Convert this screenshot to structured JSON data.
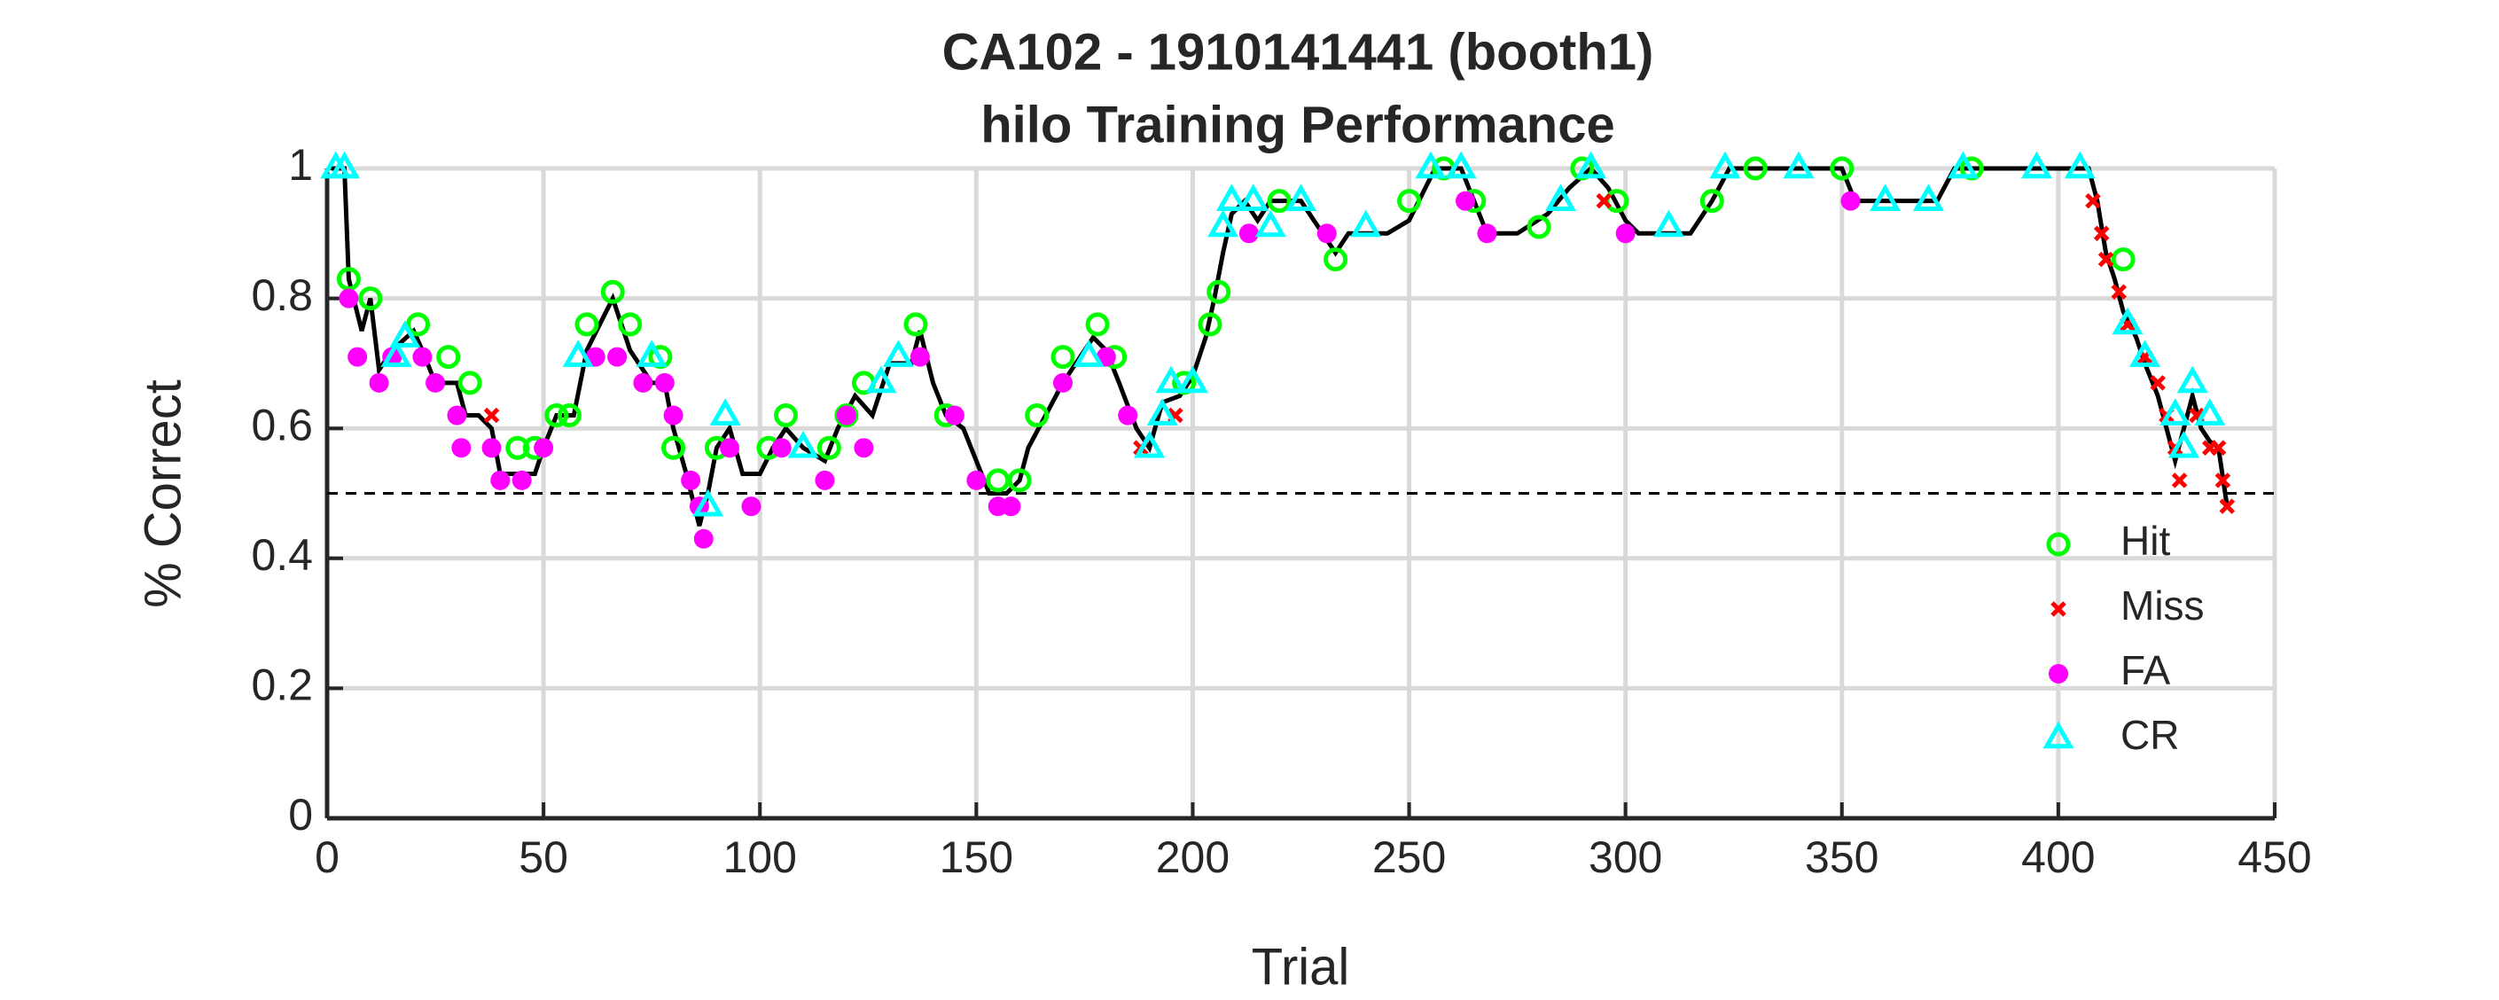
{
  "chart_data": {
    "type": "line",
    "title": "CA102 - 1910141441 (booth1)",
    "subtitle": "hilo Training Performance",
    "xlabel": "Trial",
    "ylabel": "% Correct",
    "xlim": [
      0,
      450
    ],
    "xticks": [
      0,
      50,
      100,
      150,
      200,
      250,
      300,
      350,
      400,
      450
    ],
    "ylim": [
      0,
      1
    ],
    "yticks": [
      0,
      0.2,
      0.4,
      0.6,
      0.8,
      1
    ],
    "grid": true,
    "legend": "lower right",
    "reference_line": 0.5,
    "line": {
      "color": "#000000",
      "x": [
        1,
        4,
        5,
        8,
        10,
        12,
        15,
        20,
        22,
        25,
        30,
        32,
        35,
        38,
        40,
        45,
        48,
        50,
        53,
        57,
        60,
        63,
        66,
        70,
        75,
        78,
        80,
        83,
        86,
        88,
        90,
        93,
        96,
        100,
        103,
        106,
        110,
        115,
        118,
        122,
        126,
        130,
        135,
        137,
        140,
        143,
        147,
        150,
        153,
        157,
        160,
        162,
        166,
        170,
        173,
        177,
        180,
        183,
        187,
        190,
        193,
        197,
        200,
        203,
        205,
        207,
        209,
        212,
        215,
        218,
        225,
        230,
        233,
        236,
        245,
        250,
        253,
        256,
        262,
        265,
        268,
        275,
        282,
        287,
        292,
        296,
        300,
        303,
        315,
        320,
        324,
        350,
        353,
        372,
        376,
        407,
        409,
        411,
        413,
        415,
        418,
        420,
        423,
        425,
        427,
        429,
        431,
        433,
        435,
        437,
        439
      ],
      "values": [
        1,
        1,
        0.83,
        0.75,
        0.8,
        0.69,
        0.72,
        0.75,
        0.72,
        0.67,
        0.67,
        0.62,
        0.62,
        0.6,
        0.53,
        0.53,
        0.53,
        0.57,
        0.62,
        0.62,
        0.72,
        0.76,
        0.8,
        0.72,
        0.67,
        0.67,
        0.6,
        0.53,
        0.45,
        0.5,
        0.57,
        0.6,
        0.53,
        0.53,
        0.57,
        0.6,
        0.57,
        0.55,
        0.6,
        0.65,
        0.62,
        0.7,
        0.7,
        0.75,
        0.67,
        0.62,
        0.6,
        0.55,
        0.5,
        0.5,
        0.52,
        0.57,
        0.62,
        0.67,
        0.7,
        0.74,
        0.72,
        0.67,
        0.6,
        0.57,
        0.64,
        0.65,
        0.68,
        0.74,
        0.8,
        0.87,
        0.93,
        0.95,
        0.92,
        0.95,
        0.95,
        0.9,
        0.87,
        0.9,
        0.9,
        0.92,
        0.96,
        1,
        1,
        0.95,
        0.9,
        0.9,
        0.93,
        0.97,
        1,
        0.97,
        0.92,
        0.9,
        0.9,
        0.95,
        1,
        1,
        0.95,
        0.95,
        1,
        1,
        0.95,
        0.87,
        0.83,
        0.78,
        0.74,
        0.7,
        0.65,
        0.6,
        0.55,
        0.6,
        0.65,
        0.6,
        0.58,
        0.57,
        0.48
      ]
    },
    "series": [
      {
        "name": "Hit",
        "color": "#00ff00",
        "marker": "circle",
        "x": [
          5,
          10,
          21,
          28,
          33,
          44,
          48,
          53,
          56,
          60,
          66,
          70,
          77,
          80,
          90,
          102,
          106,
          116,
          120,
          124,
          136,
          143,
          155,
          160,
          164,
          170,
          178,
          182,
          198,
          204,
          206,
          220,
          233,
          250,
          258,
          265,
          280,
          290,
          298,
          320,
          330,
          350,
          380,
          415
        ],
        "values": [
          0.83,
          0.8,
          0.76,
          0.71,
          0.67,
          0.57,
          0.57,
          0.62,
          0.62,
          0.76,
          0.81,
          0.76,
          0.71,
          0.57,
          0.57,
          0.57,
          0.62,
          0.57,
          0.62,
          0.67,
          0.76,
          0.62,
          0.52,
          0.52,
          0.62,
          0.71,
          0.76,
          0.71,
          0.67,
          0.76,
          0.81,
          0.95,
          0.86,
          0.95,
          1,
          0.95,
          0.91,
          1,
          0.95,
          0.95,
          1,
          1,
          1,
          0.86
        ]
      },
      {
        "name": "Miss",
        "color": "#ff0000",
        "marker": "x",
        "x": [
          38,
          188,
          196,
          295,
          408,
          410,
          411,
          414,
          416,
          420,
          423,
          425,
          427,
          428,
          432,
          435,
          437,
          438,
          439
        ],
        "values": [
          0.62,
          0.57,
          0.62,
          0.95,
          0.95,
          0.9,
          0.86,
          0.81,
          0.76,
          0.71,
          0.67,
          0.62,
          0.57,
          0.52,
          0.62,
          0.57,
          0.57,
          0.52,
          0.48
        ]
      },
      {
        "name": "FA",
        "color": "#ff00ff",
        "marker": "dot",
        "x": [
          5,
          7,
          12,
          15,
          22,
          25,
          30,
          31,
          38,
          40,
          45,
          50,
          62,
          67,
          73,
          78,
          80,
          84,
          86,
          87,
          93,
          98,
          105,
          115,
          120,
          124,
          137,
          145,
          150,
          155,
          158,
          170,
          180,
          185,
          213,
          231,
          263,
          268,
          300,
          352
        ],
        "values": [
          0.8,
          0.71,
          0.67,
          0.71,
          0.71,
          0.67,
          0.62,
          0.57,
          0.57,
          0.52,
          0.52,
          0.57,
          0.71,
          0.71,
          0.67,
          0.67,
          0.62,
          0.52,
          0.48,
          0.43,
          0.57,
          0.48,
          0.57,
          0.52,
          0.62,
          0.57,
          0.71,
          0.62,
          0.52,
          0.48,
          0.48,
          0.67,
          0.71,
          0.62,
          0.9,
          0.9,
          0.95,
          0.9,
          0.9,
          0.95
        ]
      },
      {
        "name": "CR",
        "color": "#00ffff",
        "marker": "triangle",
        "x": [
          2,
          4,
          16,
          18,
          58,
          75,
          88,
          92,
          110,
          128,
          132,
          176,
          190,
          193,
          195,
          200,
          207,
          209,
          214,
          218,
          225,
          240,
          255,
          262,
          285,
          292,
          310,
          323,
          340,
          360,
          370,
          378,
          395,
          405,
          416,
          420,
          427,
          429,
          431,
          435
        ],
        "values": [
          1,
          1,
          0.71,
          0.74,
          0.71,
          0.71,
          0.48,
          0.62,
          0.57,
          0.67,
          0.71,
          0.71,
          0.57,
          0.62,
          0.67,
          0.67,
          0.91,
          0.95,
          0.95,
          0.91,
          0.95,
          0.91,
          1,
          1,
          0.95,
          1,
          0.91,
          1,
          1,
          0.95,
          0.95,
          1,
          1,
          1,
          0.76,
          0.71,
          0.62,
          0.57,
          0.67,
          0.62
        ]
      }
    ]
  }
}
